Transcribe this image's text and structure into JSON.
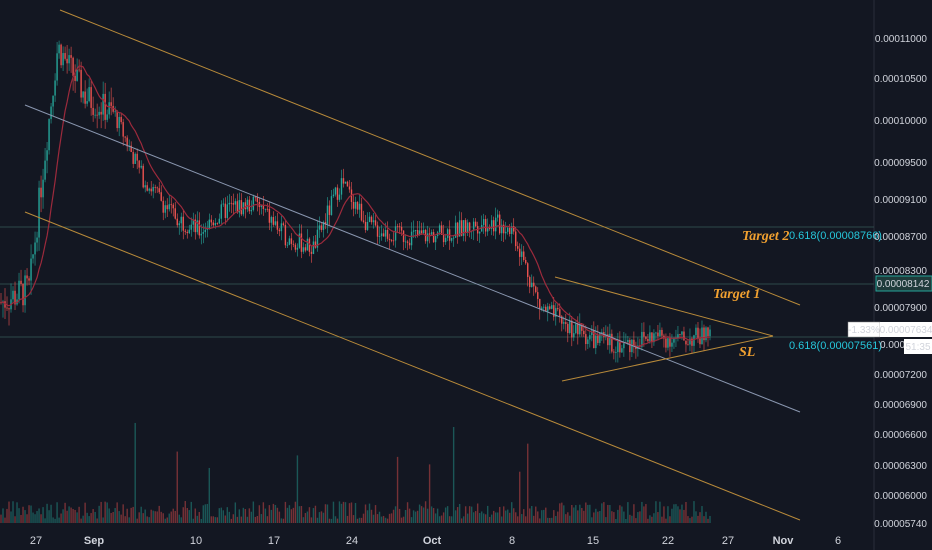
{
  "colors": {
    "background": "#131722",
    "up": "#26a69a",
    "down": "#ef5350",
    "ma": "#9c2a3c",
    "channel_outer": "#b88a3a",
    "channel_mid": "#8a97b0",
    "fib": "#26c6da",
    "annotation": "#f0a030",
    "hline": "#2e4a4a"
  },
  "chart_data": {
    "type": "candlestick",
    "x_ticks": [
      "27",
      "Sep",
      "10",
      "17",
      "24",
      "Oct",
      "8",
      "15",
      "22",
      "27",
      "Nov",
      "6"
    ],
    "bold_x_ticks": [
      "Sep",
      "Oct",
      "Nov"
    ],
    "y_ticks": [
      "0.00011000",
      "0.00010500",
      "0.00010000",
      "0.00009500",
      "0.00009100",
      "0.00008700",
      "0.00008300",
      "0.00007900",
      "0.00007200",
      "0.00006900",
      "0.00006600",
      "0.00006300",
      "0.00006000",
      "0.00005740"
    ],
    "price_path": [
      [
        0,
        7.95
      ],
      [
        3,
        8.1
      ],
      [
        6,
        10.9
      ],
      [
        9,
        10.3
      ],
      [
        12,
        10.1
      ],
      [
        15,
        9.35
      ],
      [
        18,
        8.95
      ],
      [
        21,
        8.75
      ],
      [
        24,
        9.0
      ],
      [
        27,
        9.05
      ],
      [
        30,
        8.7
      ],
      [
        33,
        8.55
      ],
      [
        36,
        9.3
      ],
      [
        39,
        8.8
      ],
      [
        42,
        8.7
      ],
      [
        45,
        8.7
      ],
      [
        48,
        8.75
      ],
      [
        51,
        8.85
      ],
      [
        54,
        8.8
      ],
      [
        57,
        7.9
      ],
      [
        60,
        7.7
      ],
      [
        63,
        7.55
      ],
      [
        66,
        7.5
      ],
      [
        69,
        7.6
      ],
      [
        72,
        7.55
      ],
      [
        75,
        7.62
      ]
    ],
    "annotations": [
      {
        "label": "Target 2",
        "fib_label": "0.618(0.00008766)"
      },
      {
        "label": "Target 1"
      },
      {
        "label": "SL",
        "fib_label": "0.618(0.00007561)"
      }
    ],
    "price_badge": {
      "change": "-1.33%",
      "price": "0.00007634",
      "countdown": "51:35"
    },
    "level_badge": "0.00008142",
    "partial_label": "0.0000"
  }
}
